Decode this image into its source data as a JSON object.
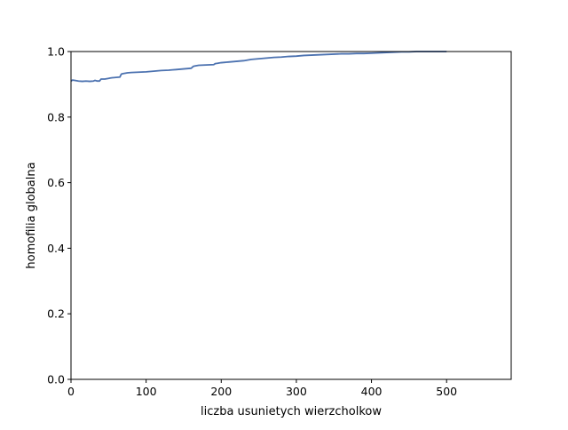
{
  "chart_data": {
    "type": "line",
    "title": "",
    "xlabel": "liczba usunietych wierzcholkow",
    "ylabel": "homofilia globalna",
    "xlim": [
      0,
      586
    ],
    "ylim": [
      0,
      1.0
    ],
    "x_ticks": [
      0,
      100,
      200,
      300,
      400,
      500
    ],
    "y_ticks": [
      0.0,
      0.2,
      0.4,
      0.6,
      0.8,
      1.0
    ],
    "x_tick_labels": [
      "0",
      "100",
      "200",
      "300",
      "400",
      "500"
    ],
    "y_tick_labels": [
      "0.0",
      "0.2",
      "0.4",
      "0.6",
      "0.8",
      "1.0"
    ],
    "grid": false,
    "legend": "none",
    "line_color": "#4c72b0",
    "series": [
      {
        "x": [
          0,
          2,
          5,
          10,
          15,
          20,
          25,
          30,
          32,
          35,
          38,
          40,
          45,
          50,
          52,
          55,
          60,
          65,
          67,
          68,
          70,
          75,
          80,
          90,
          100,
          110,
          120,
          130,
          135,
          140,
          150,
          155,
          160,
          163,
          165,
          170,
          180,
          190,
          192,
          195,
          200,
          210,
          220,
          230,
          235,
          240,
          250,
          260,
          270,
          280,
          290,
          300,
          310,
          320,
          330,
          340,
          350,
          360,
          370,
          380,
          390,
          400,
          410,
          420,
          430,
          440,
          450,
          460,
          470,
          480,
          490,
          500
        ],
        "y": [
          0.91,
          0.913,
          0.912,
          0.91,
          0.909,
          0.91,
          0.909,
          0.91,
          0.912,
          0.91,
          0.91,
          0.916,
          0.916,
          0.918,
          0.919,
          0.92,
          0.921,
          0.922,
          0.931,
          0.932,
          0.933,
          0.935,
          0.936,
          0.937,
          0.938,
          0.94,
          0.942,
          0.943,
          0.944,
          0.945,
          0.947,
          0.948,
          0.949,
          0.955,
          0.956,
          0.958,
          0.959,
          0.96,
          0.963,
          0.964,
          0.966,
          0.968,
          0.97,
          0.972,
          0.974,
          0.976,
          0.978,
          0.98,
          0.982,
          0.983,
          0.985,
          0.986,
          0.988,
          0.989,
          0.99,
          0.991,
          0.992,
          0.993,
          0.993,
          0.994,
          0.994,
          0.995,
          0.996,
          0.997,
          0.998,
          0.999,
          0.999,
          1.0,
          1.0,
          1.0,
          1.0,
          1.0
        ]
      }
    ]
  }
}
